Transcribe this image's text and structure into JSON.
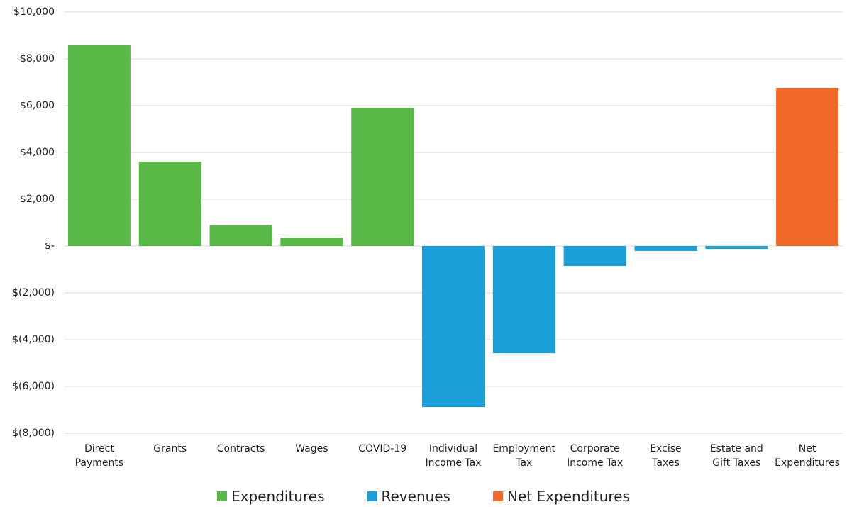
{
  "chart_data": {
    "type": "bar",
    "categories": [
      "Direct\nPayments",
      "Grants",
      "Contracts",
      "Wages",
      "COVID-19",
      "Individual\nIncome Tax",
      "Employment\nTax",
      "Corporate\nIncome Tax",
      "Excise\nTaxes",
      "Estate and\nGift Taxes",
      "Net\nExpenditures"
    ],
    "series": [
      {
        "name": "Expenditures",
        "color": "#58b947",
        "values": [
          8580,
          3600,
          880,
          360,
          5910,
          null,
          null,
          null,
          null,
          null,
          null
        ]
      },
      {
        "name": "Revenues",
        "color": "#1a9fd9",
        "values": [
          null,
          null,
          null,
          null,
          null,
          -6880,
          -4580,
          -850,
          -210,
          -120,
          null
        ]
      },
      {
        "name": "Net Expenditures",
        "color": "#f26a27",
        "values": [
          null,
          null,
          null,
          null,
          null,
          null,
          null,
          null,
          null,
          null,
          6760
        ]
      }
    ],
    "ylim": [
      -8000,
      10000
    ],
    "yticks": [
      {
        "value": -8000,
        "label": "$(8,000)"
      },
      {
        "value": -6000,
        "label": "$(6,000)"
      },
      {
        "value": -4000,
        "label": "$(4,000)"
      },
      {
        "value": -2000,
        "label": "$(2,000)"
      },
      {
        "value": 0,
        "label": "$-"
      },
      {
        "value": 2000,
        "label": "$2,000"
      },
      {
        "value": 4000,
        "label": "$4,000"
      },
      {
        "value": 6000,
        "label": "$6,000"
      },
      {
        "value": 8000,
        "label": "$8,000"
      },
      {
        "value": 10000,
        "label": "$10,000"
      }
    ],
    "grid": true,
    "legend": "bottom"
  }
}
